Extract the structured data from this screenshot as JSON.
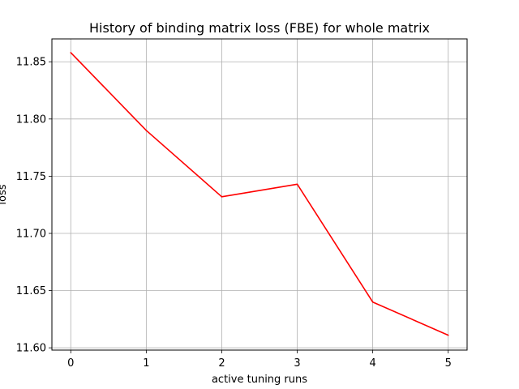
{
  "chart_data": {
    "type": "line",
    "title": "History of binding matrix loss (FBE) for whole matrix",
    "xlabel": "active tuning runs",
    "ylabel": "loss",
    "x": [
      0,
      1,
      2,
      3,
      4,
      5
    ],
    "series": [
      {
        "values": [
          11.858,
          11.79,
          11.732,
          11.743,
          11.64,
          11.611
        ],
        "color": "#ff0000"
      }
    ],
    "xlim": [
      -0.25,
      5.25
    ],
    "ylim": [
      11.598,
      11.87
    ],
    "xticks": [
      0,
      1,
      2,
      3,
      4,
      5
    ],
    "xtick_labels": [
      "0",
      "1",
      "2",
      "3",
      "4",
      "5"
    ],
    "yticks": [
      11.6,
      11.65,
      11.7,
      11.75,
      11.8,
      11.85
    ],
    "ytick_labels": [
      "11.60",
      "11.65",
      "11.70",
      "11.75",
      "11.80",
      "11.85"
    ],
    "grid": true,
    "grid_color": "#b0b0b0"
  }
}
